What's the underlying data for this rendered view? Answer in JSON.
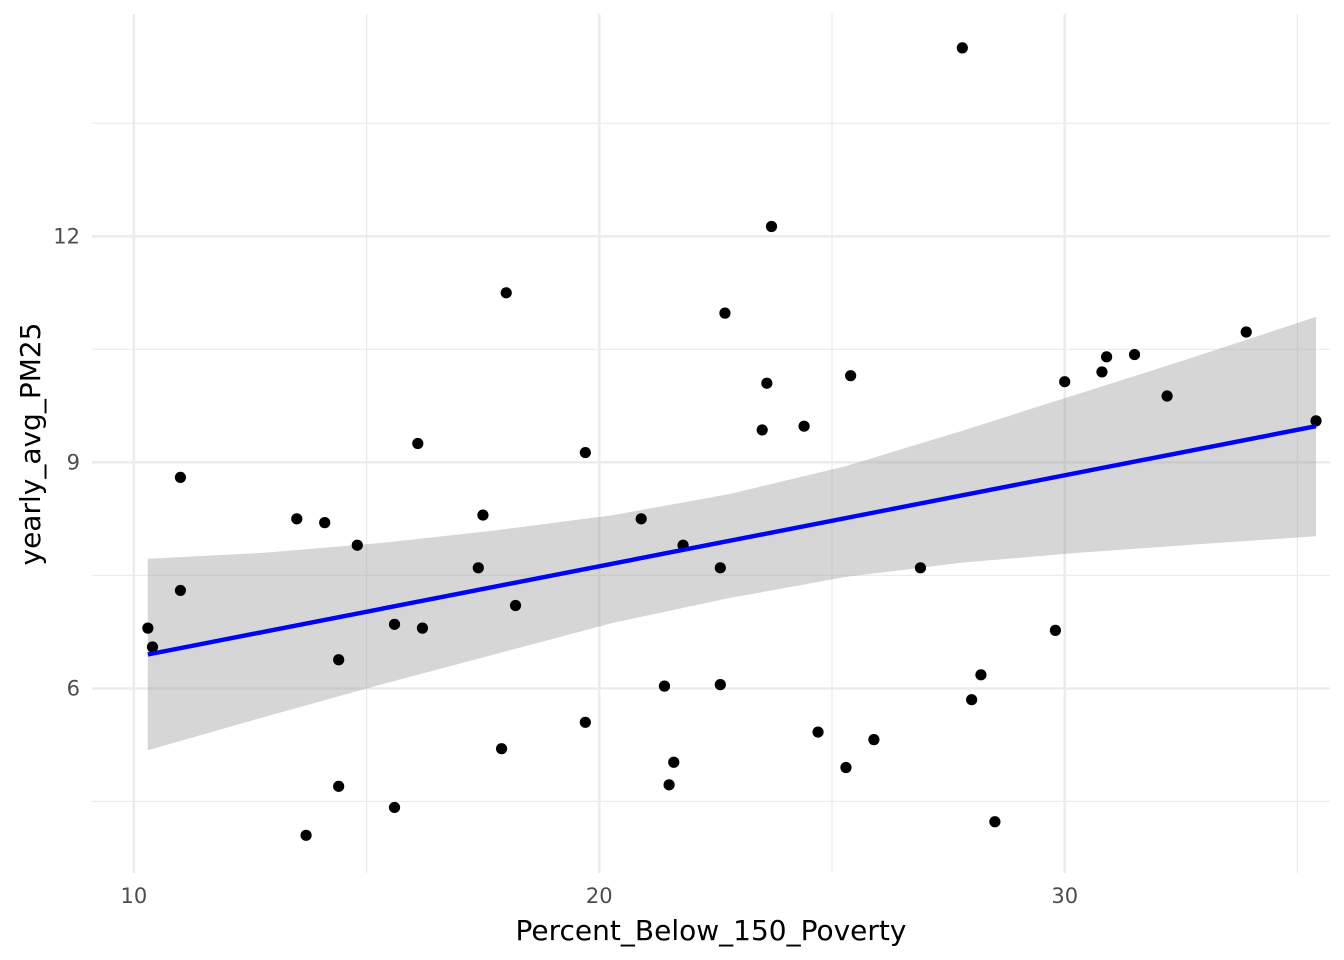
{
  "chart_data": {
    "type": "scatter",
    "title": "",
    "xlabel": "Percent_Below_150_Poverty",
    "ylabel": "yearly_avg_PM25",
    "xlim": [
      9.1,
      35.7
    ],
    "ylim": [
      3.55,
      14.95
    ],
    "x_ticks": [
      10,
      20,
      30
    ],
    "x_tick_labels": [
      "10",
      "20",
      "30"
    ],
    "x_minor_ticks": [
      15,
      25,
      35
    ],
    "y_ticks": [
      6,
      9,
      12
    ],
    "y_tick_labels": [
      "6",
      "9",
      "12"
    ],
    "y_minor_ticks": [
      4.5,
      7.5,
      10.5,
      13.5
    ],
    "grid": true,
    "legend": "none",
    "colors": {
      "points": "#000000",
      "fit_line": "#0000ff",
      "confidence_band": "#999999",
      "grid": "#ebebeb"
    },
    "points": [
      {
        "x": 10.3,
        "y": 6.8
      },
      {
        "x": 10.4,
        "y": 6.55
      },
      {
        "x": 11.0,
        "y": 8.8
      },
      {
        "x": 11.0,
        "y": 7.3
      },
      {
        "x": 13.5,
        "y": 8.25
      },
      {
        "x": 13.7,
        "y": 4.05
      },
      {
        "x": 14.1,
        "y": 8.2
      },
      {
        "x": 14.4,
        "y": 6.38
      },
      {
        "x": 14.4,
        "y": 4.7
      },
      {
        "x": 14.8,
        "y": 7.9
      },
      {
        "x": 15.6,
        "y": 6.85
      },
      {
        "x": 15.6,
        "y": 4.42
      },
      {
        "x": 16.1,
        "y": 9.25
      },
      {
        "x": 16.2,
        "y": 6.8
      },
      {
        "x": 17.4,
        "y": 7.6
      },
      {
        "x": 17.5,
        "y": 8.3
      },
      {
        "x": 17.9,
        "y": 5.2
      },
      {
        "x": 18.0,
        "y": 11.25
      },
      {
        "x": 18.2,
        "y": 7.1
      },
      {
        "x": 19.7,
        "y": 9.13
      },
      {
        "x": 19.7,
        "y": 5.55
      },
      {
        "x": 20.9,
        "y": 8.25
      },
      {
        "x": 21.4,
        "y": 6.03
      },
      {
        "x": 21.5,
        "y": 4.72
      },
      {
        "x": 21.6,
        "y": 5.02
      },
      {
        "x": 21.8,
        "y": 7.9
      },
      {
        "x": 22.6,
        "y": 7.6
      },
      {
        "x": 22.6,
        "y": 6.05
      },
      {
        "x": 22.7,
        "y": 10.98
      },
      {
        "x": 23.5,
        "y": 9.43
      },
      {
        "x": 23.6,
        "y": 10.05
      },
      {
        "x": 23.7,
        "y": 12.13
      },
      {
        "x": 24.4,
        "y": 9.48
      },
      {
        "x": 24.7,
        "y": 5.42
      },
      {
        "x": 25.3,
        "y": 4.95
      },
      {
        "x": 25.4,
        "y": 10.15
      },
      {
        "x": 25.9,
        "y": 5.32
      },
      {
        "x": 26.9,
        "y": 7.6
      },
      {
        "x": 27.8,
        "y": 14.5
      },
      {
        "x": 28.0,
        "y": 5.85
      },
      {
        "x": 28.2,
        "y": 6.18
      },
      {
        "x": 28.5,
        "y": 4.23
      },
      {
        "x": 29.8,
        "y": 6.77
      },
      {
        "x": 30.0,
        "y": 10.07
      },
      {
        "x": 30.8,
        "y": 10.2
      },
      {
        "x": 30.9,
        "y": 10.4
      },
      {
        "x": 31.5,
        "y": 10.43
      },
      {
        "x": 32.2,
        "y": 9.88
      },
      {
        "x": 33.9,
        "y": 10.73
      },
      {
        "x": 35.4,
        "y": 9.55
      }
    ],
    "fit_line": {
      "x": [
        10.3,
        35.4
      ],
      "y": [
        6.45,
        9.48
      ]
    },
    "confidence_band": {
      "x": [
        10.3,
        12.8,
        15.3,
        17.8,
        20.3,
        22.8,
        25.3,
        27.8,
        30.3,
        32.8,
        35.4
      ],
      "upper": [
        7.72,
        7.8,
        7.93,
        8.1,
        8.3,
        8.58,
        8.95,
        9.42,
        9.91,
        10.4,
        10.93
      ],
      "lower": [
        5.18,
        5.62,
        6.05,
        6.46,
        6.87,
        7.2,
        7.48,
        7.67,
        7.8,
        7.91,
        8.02
      ]
    }
  }
}
